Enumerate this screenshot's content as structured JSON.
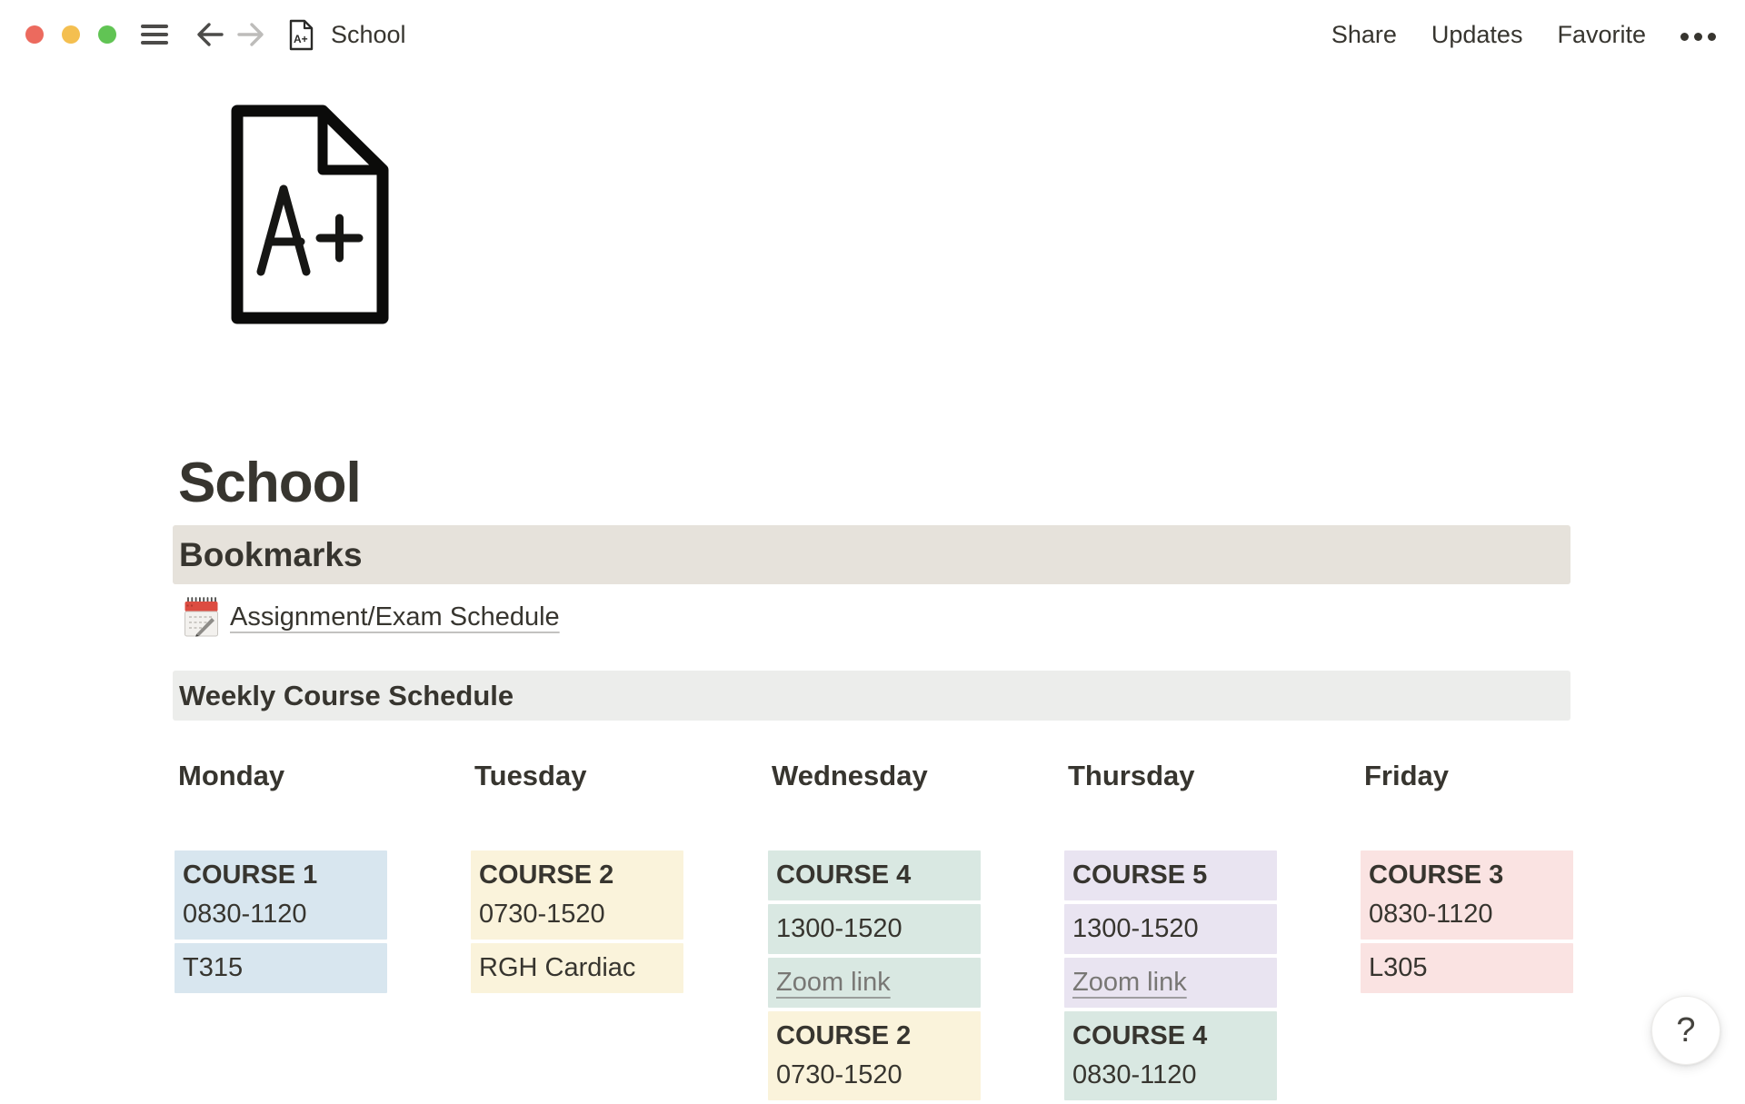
{
  "topbar": {
    "title": "School",
    "actions": [
      {
        "label": "Share"
      },
      {
        "label": "Updates"
      },
      {
        "label": "Favorite"
      }
    ],
    "icons": {
      "window_controls": [
        "close",
        "minimize",
        "zoom"
      ],
      "menu": "hamburger-icon",
      "back": "arrow-left-icon",
      "forward": "arrow-right-icon",
      "page": "a-plus-document-icon",
      "more": "ellipsis-icon"
    }
  },
  "page": {
    "icon_text": "A+",
    "icon_name": "a-plus-document-icon",
    "title": "School"
  },
  "bookmarks": {
    "heading": "Bookmarks",
    "items": [
      {
        "icon": "spiral-calendar-icon",
        "label": "Assignment/Exam Schedule"
      }
    ]
  },
  "schedule": {
    "heading": "Weekly Course Schedule",
    "days": [
      {
        "name": "Monday",
        "blocks": [
          {
            "color": "blue",
            "lines": [
              {
                "text": "COURSE 1",
                "bold": true
              },
              {
                "text": "0830-1120"
              }
            ]
          },
          {
            "color": "blue",
            "lines": [
              {
                "text": "T315"
              }
            ]
          }
        ]
      },
      {
        "name": "Tuesday",
        "blocks": [
          {
            "color": "yellow",
            "lines": [
              {
                "text": "COURSE 2",
                "bold": true
              },
              {
                "text": "0730-1520"
              }
            ]
          },
          {
            "color": "yellow",
            "lines": [
              {
                "text": "RGH Cardiac"
              }
            ]
          }
        ]
      },
      {
        "name": "Wednesday",
        "blocks": [
          {
            "color": "teal",
            "lines": [
              {
                "text": "COURSE 4",
                "bold": true
              }
            ]
          },
          {
            "color": "teal",
            "lines": [
              {
                "text": "1300-1520"
              }
            ]
          },
          {
            "color": "teal",
            "lines": [
              {
                "text": "Zoom link",
                "link": true
              }
            ]
          },
          {
            "color": "yellow",
            "lines": [
              {
                "text": "COURSE 2",
                "bold": true
              },
              {
                "text": "0730-1520"
              }
            ]
          }
        ]
      },
      {
        "name": "Thursday",
        "blocks": [
          {
            "color": "purple",
            "lines": [
              {
                "text": "COURSE 5",
                "bold": true
              }
            ]
          },
          {
            "color": "purple",
            "lines": [
              {
                "text": "1300-1520"
              }
            ]
          },
          {
            "color": "purple",
            "lines": [
              {
                "text": "Zoom link",
                "link": true
              }
            ]
          },
          {
            "color": "teal",
            "lines": [
              {
                "text": "COURSE 4",
                "bold": true
              },
              {
                "text": "0830-1120"
              }
            ]
          }
        ]
      },
      {
        "name": "Friday",
        "blocks": [
          {
            "color": "pink",
            "lines": [
              {
                "text": "COURSE 3",
                "bold": true
              },
              {
                "text": "0830-1120"
              }
            ]
          },
          {
            "color": "pink",
            "lines": [
              {
                "text": "L305"
              }
            ]
          }
        ]
      }
    ]
  },
  "help": {
    "label": "?"
  },
  "colors": {
    "blue": "#D8E6EF",
    "yellow": "#FAF3DB",
    "teal": "#D9E8E2",
    "purple": "#E9E4F1",
    "pink": "#FAE3E2",
    "bookmarks_bar": "#E6E2DB",
    "schedule_bar": "#ECEDEB",
    "text": "#37352F",
    "muted_link": "#787774"
  }
}
